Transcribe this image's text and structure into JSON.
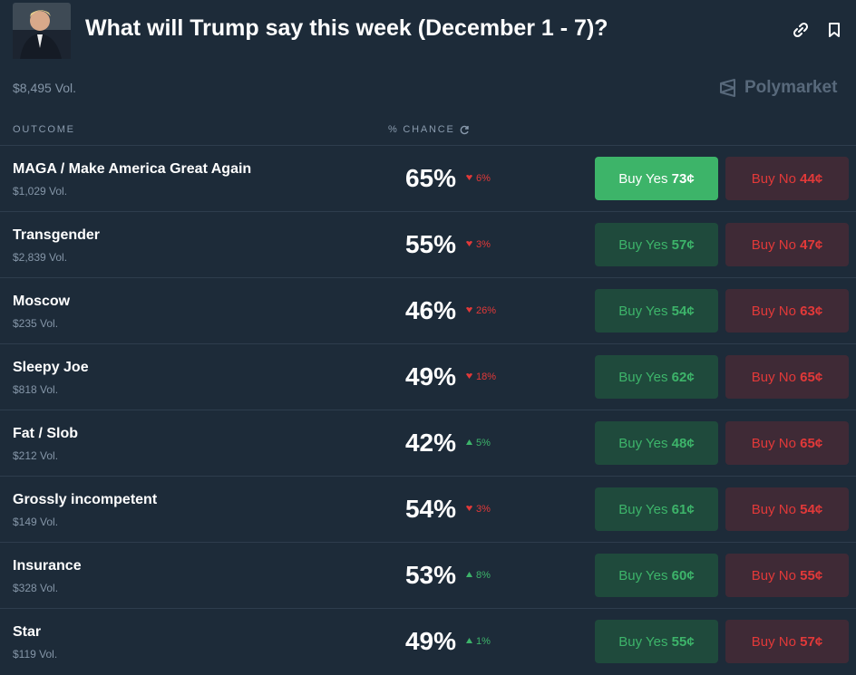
{
  "header": {
    "title": "What will Trump say this week (December 1 - 7)?",
    "volume": "$8,495 Vol.",
    "brand": "Polymarket"
  },
  "columns": {
    "outcome": "OUTCOME",
    "chance": "% CHANCE"
  },
  "buttons": {
    "yes_label": "Buy Yes",
    "no_label": "Buy No"
  },
  "rows": [
    {
      "name": "MAGA / Make America Great Again",
      "volume": "$1,029 Vol.",
      "chance": "65%",
      "change": "6%",
      "direction": "down",
      "yes_price": "73¢",
      "no_price": "44¢",
      "selected": true
    },
    {
      "name": "Transgender",
      "volume": "$2,839 Vol.",
      "chance": "55%",
      "change": "3%",
      "direction": "down",
      "yes_price": "57¢",
      "no_price": "47¢"
    },
    {
      "name": "Moscow",
      "volume": "$235 Vol.",
      "chance": "46%",
      "change": "26%",
      "direction": "down",
      "yes_price": "54¢",
      "no_price": "63¢"
    },
    {
      "name": "Sleepy Joe",
      "volume": "$818 Vol.",
      "chance": "49%",
      "change": "18%",
      "direction": "down",
      "yes_price": "62¢",
      "no_price": "65¢"
    },
    {
      "name": "Fat / Slob",
      "volume": "$212 Vol.",
      "chance": "42%",
      "change": "5%",
      "direction": "up",
      "yes_price": "48¢",
      "no_price": "65¢"
    },
    {
      "name": "Grossly incompetent",
      "volume": "$149 Vol.",
      "chance": "54%",
      "change": "3%",
      "direction": "down",
      "yes_price": "61¢",
      "no_price": "54¢"
    },
    {
      "name": "Insurance",
      "volume": "$328 Vol.",
      "chance": "53%",
      "change": "8%",
      "direction": "up",
      "yes_price": "60¢",
      "no_price": "55¢"
    },
    {
      "name": "Star",
      "volume": "$119 Vol.",
      "chance": "49%",
      "change": "1%",
      "direction": "up",
      "yes_price": "55¢",
      "no_price": "57¢"
    }
  ]
}
